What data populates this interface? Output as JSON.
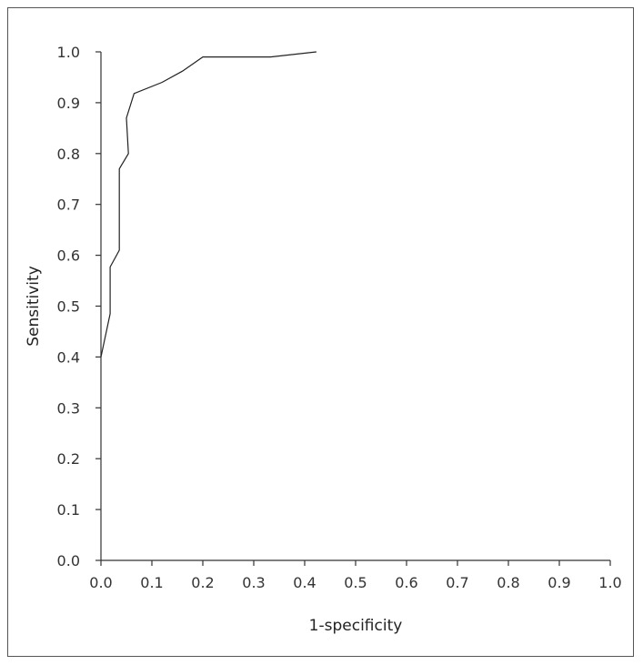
{
  "chart_data": {
    "type": "line",
    "title": "",
    "xlabel": "1-specificity",
    "ylabel": "Sensitivity",
    "xlim": [
      0,
      1
    ],
    "ylim": [
      0,
      1
    ],
    "x_ticks": [
      "0.0",
      "0.1",
      "0.2",
      "0.3",
      "0.4",
      "0.5",
      "0.6",
      "0.7",
      "0.8",
      "0.9",
      "1.0"
    ],
    "y_ticks": [
      "0.0",
      "0.1",
      "0.2",
      "0.3",
      "0.4",
      "0.5",
      "0.6",
      "0.7",
      "0.8",
      "0.9",
      "1.0"
    ],
    "grid": false,
    "legend": "none",
    "line_color": "#222222",
    "series": [
      {
        "name": "",
        "x": [
          0.0,
          0.018,
          0.018,
          0.036,
          0.036,
          0.054,
          0.05,
          0.065,
          0.12,
          0.16,
          0.2,
          0.333,
          0.423
        ],
        "y": [
          0.4,
          0.485,
          0.577,
          0.61,
          0.77,
          0.8,
          0.87,
          0.918,
          0.94,
          0.962,
          0.99,
          0.99,
          1.0
        ]
      }
    ]
  }
}
